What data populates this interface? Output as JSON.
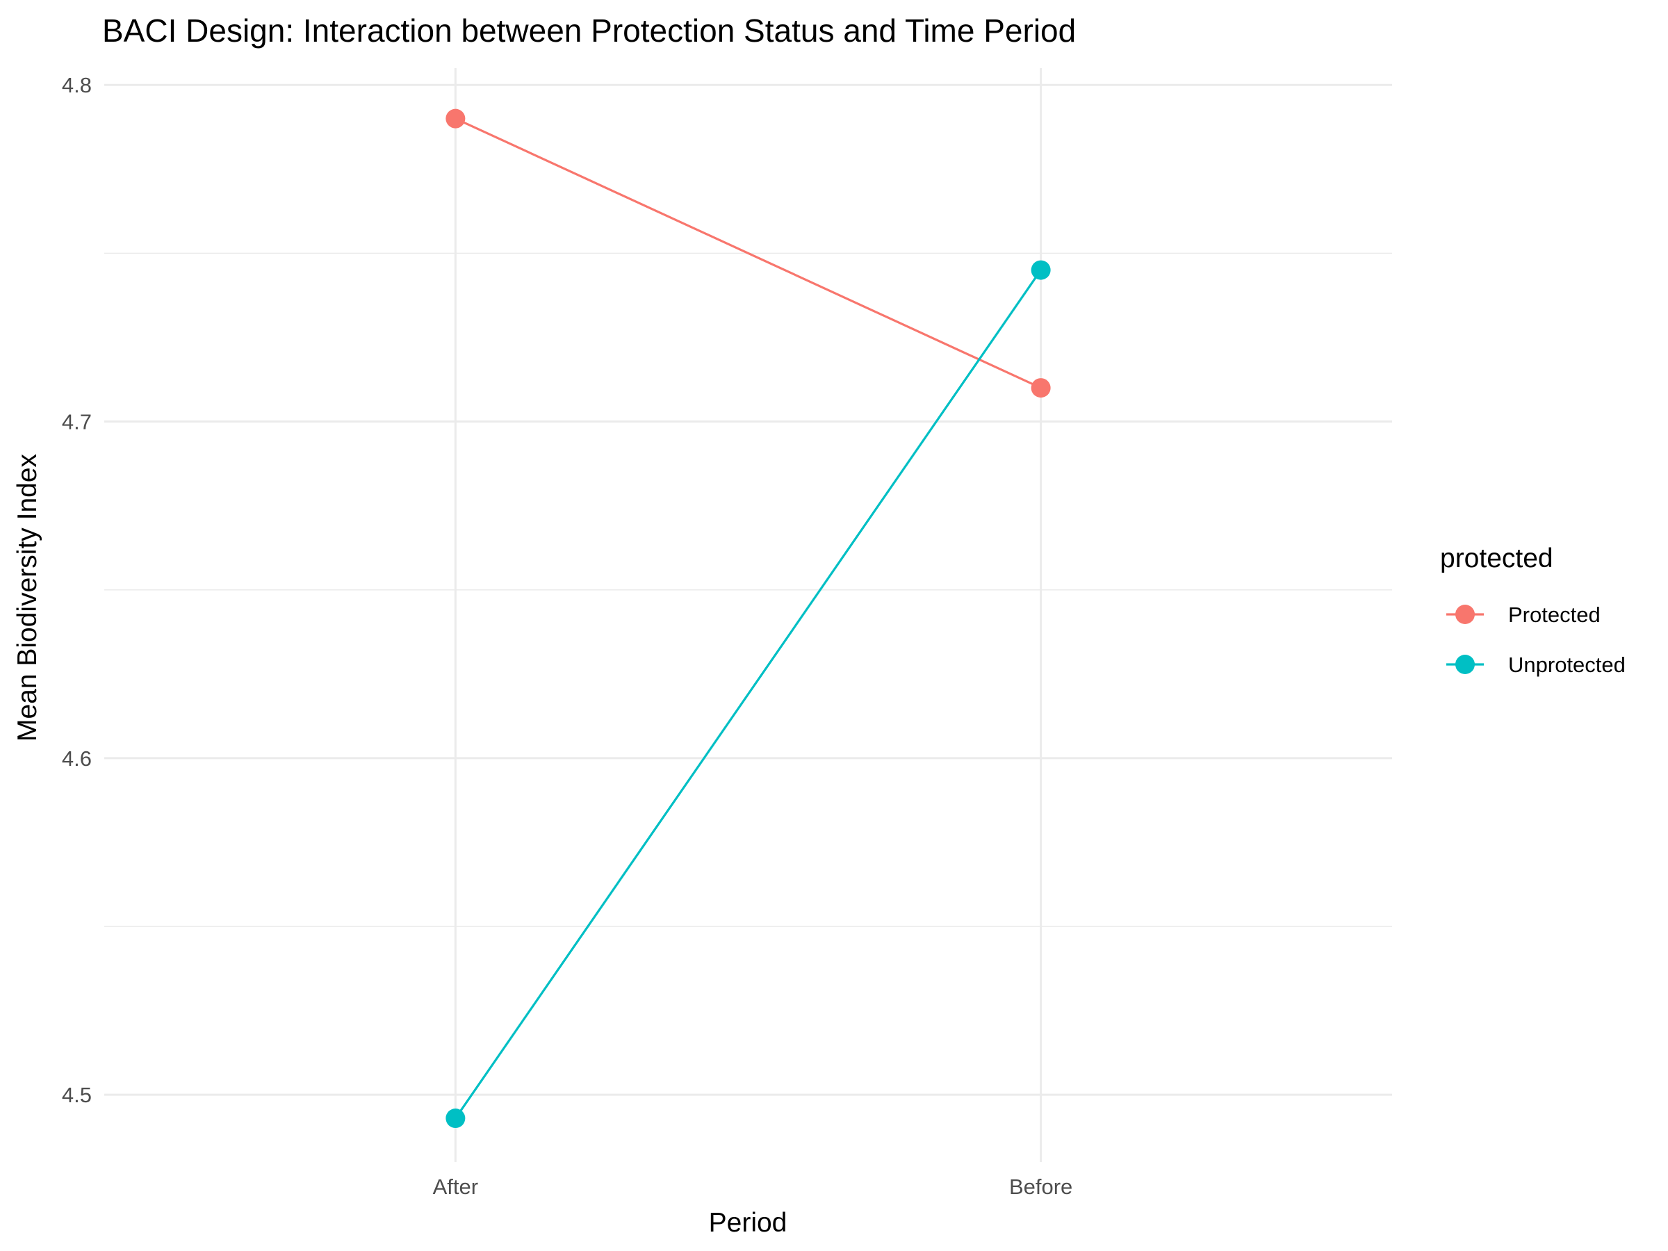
{
  "chart_data": {
    "type": "line",
    "title": "BACI Design: Interaction between Protection Status and Time Period",
    "xlabel": "Period",
    "ylabel": "Mean Biodiversity Index",
    "categories": [
      "After",
      "Before"
    ],
    "ylim": [
      4.48,
      4.805
    ],
    "yticks": [
      4.5,
      4.6,
      4.7,
      4.8
    ],
    "ytick_labels": [
      "4.5",
      "4.6",
      "4.7",
      "4.8"
    ],
    "grid": true,
    "legend": {
      "title": "protected",
      "placement": "right"
    },
    "series": [
      {
        "name": "Protected",
        "color": "#F8766D",
        "values": [
          4.79,
          4.71
        ]
      },
      {
        "name": "Unprotected",
        "color": "#00BFC4",
        "values": [
          4.493,
          4.745
        ]
      }
    ]
  }
}
